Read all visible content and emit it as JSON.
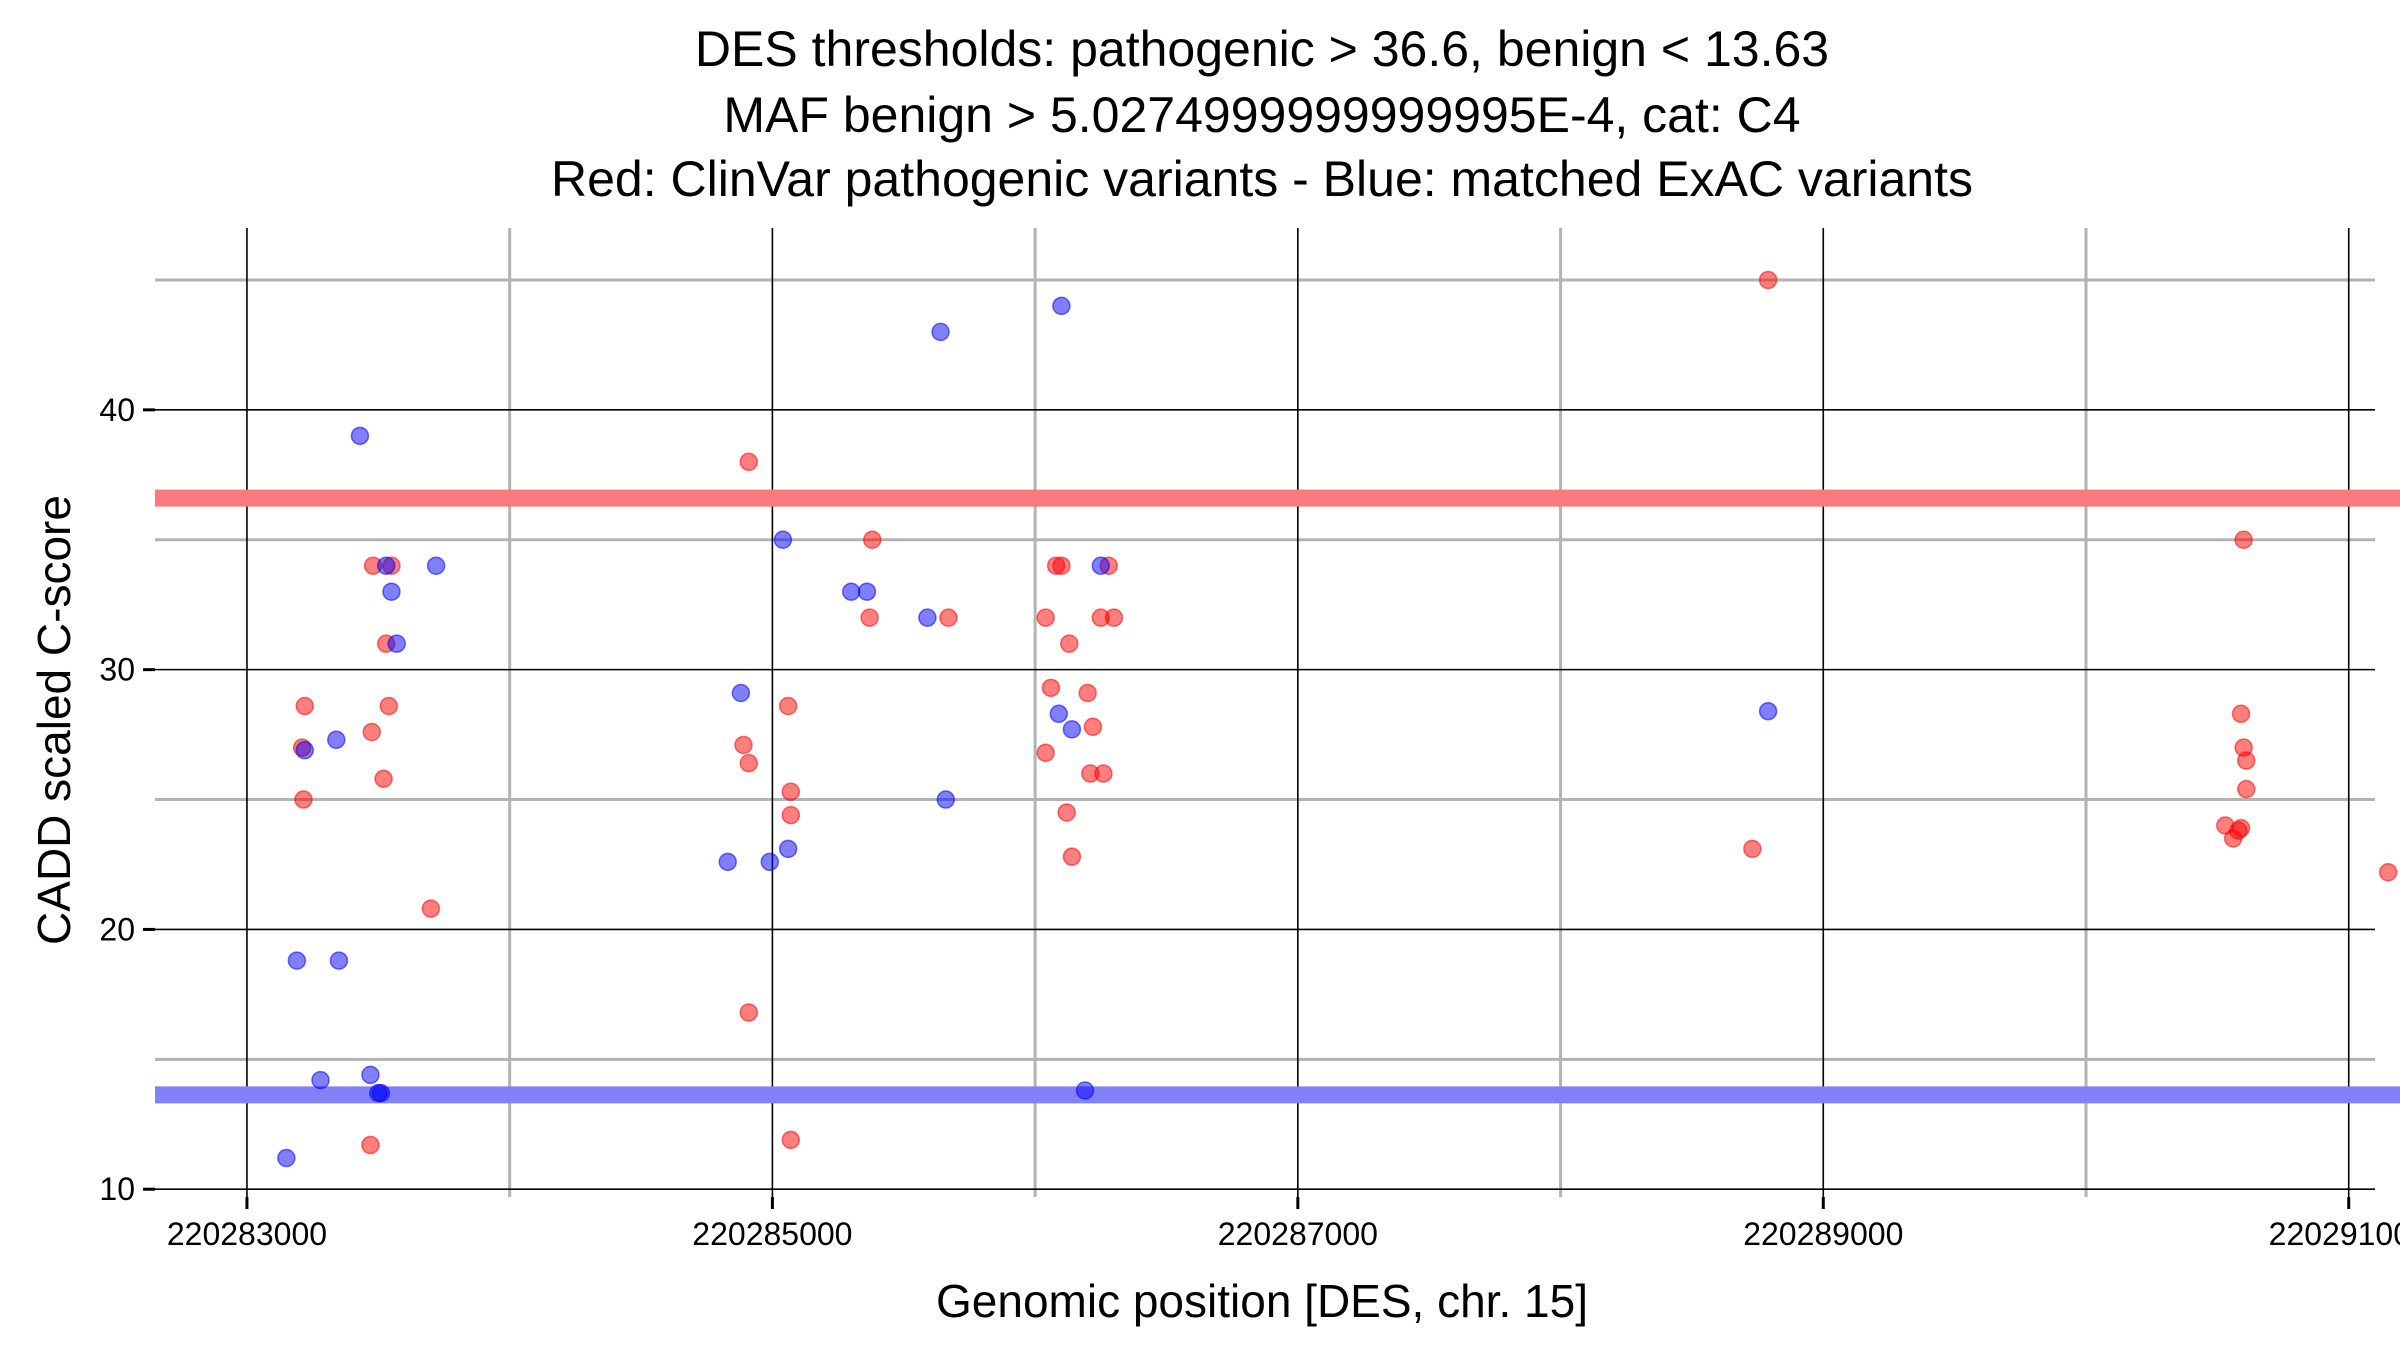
{
  "chart_data": {
    "type": "scatter",
    "title_lines": [
      "DES thresholds: pathogenic > 36.6, benign < 13.63",
      "MAF benign > 5.0274999999999995E-4, cat: C4",
      "Red: ClinVar pathogenic variants - Blue: matched ExAC variants"
    ],
    "xlabel": "Genomic position [DES, chr. 15]",
    "ylabel": "CADD scaled C-score",
    "xlim": [
      220282650,
      220291100
    ],
    "ylim": [
      9.7,
      47
    ],
    "x_ticks": [
      220283000,
      220285000,
      220287000,
      220289000,
      220291000
    ],
    "x_tick_labels": [
      "220283000",
      "220285000",
      "220287000",
      "220289000",
      "220291000"
    ],
    "x_minor_gridlines": [
      220284000,
      220286000,
      220288000,
      220290000
    ],
    "y_ticks": [
      10,
      20,
      30,
      40
    ],
    "y_tick_labels": [
      "10",
      "20",
      "30",
      "40"
    ],
    "y_minor_gridlines": [
      15,
      25,
      35,
      45
    ],
    "thresholds": [
      {
        "name": "pathogenic",
        "value": 36.6,
        "color": "#f87a7f"
      },
      {
        "name": "benign",
        "value": 13.63,
        "color": "#8282f8"
      }
    ],
    "grid": true,
    "colors": {
      "pathogenic_points": "#ff0000",
      "benign_points": "#0000ff",
      "major_grid": "#000000",
      "minor_grid": "#b3b3b3"
    },
    "series": [
      {
        "name": "ClinVar pathogenic variants",
        "color": "#ff0000",
        "points": [
          {
            "x": 220283220,
            "y": 28.6
          },
          {
            "x": 220283210,
            "y": 27.0
          },
          {
            "x": 220283215,
            "y": 25.0
          },
          {
            "x": 220283480,
            "y": 34.0
          },
          {
            "x": 220283550,
            "y": 34.0
          },
          {
            "x": 220283530,
            "y": 31.0
          },
          {
            "x": 220283540,
            "y": 28.6
          },
          {
            "x": 220283475,
            "y": 27.6
          },
          {
            "x": 220283520,
            "y": 25.8
          },
          {
            "x": 220283700,
            "y": 20.8
          },
          {
            "x": 220283470,
            "y": 11.7
          },
          {
            "x": 220284910,
            "y": 38.0
          },
          {
            "x": 220284890,
            "y": 27.1
          },
          {
            "x": 220284910,
            "y": 26.4
          },
          {
            "x": 220285060,
            "y": 28.6
          },
          {
            "x": 220285070,
            "y": 25.3
          },
          {
            "x": 220285070,
            "y": 24.4
          },
          {
            "x": 220284910,
            "y": 16.8
          },
          {
            "x": 220285070,
            "y": 11.9
          },
          {
            "x": 220285380,
            "y": 35.0
          },
          {
            "x": 220285370,
            "y": 32.0
          },
          {
            "x": 220285670,
            "y": 32.0
          },
          {
            "x": 220286080,
            "y": 34.0
          },
          {
            "x": 220286100,
            "y": 34.0
          },
          {
            "x": 220286280,
            "y": 34.0
          },
          {
            "x": 220286040,
            "y": 32.0
          },
          {
            "x": 220286250,
            "y": 32.0
          },
          {
            "x": 220286300,
            "y": 32.0
          },
          {
            "x": 220286130,
            "y": 31.0
          },
          {
            "x": 220286060,
            "y": 29.3
          },
          {
            "x": 220286200,
            "y": 29.1
          },
          {
            "x": 220286220,
            "y": 27.8
          },
          {
            "x": 220286040,
            "y": 26.8
          },
          {
            "x": 220286210,
            "y": 26.0
          },
          {
            "x": 220286260,
            "y": 26.0
          },
          {
            "x": 220286120,
            "y": 24.5
          },
          {
            "x": 220286140,
            "y": 22.8
          },
          {
            "x": 220288790,
            "y": 45.0
          },
          {
            "x": 220288730,
            "y": 23.1
          },
          {
            "x": 220290600,
            "y": 35.0
          },
          {
            "x": 220290590,
            "y": 28.3
          },
          {
            "x": 220290600,
            "y": 27.0
          },
          {
            "x": 220290610,
            "y": 26.5
          },
          {
            "x": 220290610,
            "y": 25.4
          },
          {
            "x": 220290530,
            "y": 24.0
          },
          {
            "x": 220290590,
            "y": 23.9
          },
          {
            "x": 220290560,
            "y": 23.5
          },
          {
            "x": 220290580,
            "y": 23.8
          },
          {
            "x": 220291150,
            "y": 22.2
          }
        ]
      },
      {
        "name": "matched ExAC variants",
        "color": "#0000ff",
        "points": [
          {
            "x": 220283430,
            "y": 39.0
          },
          {
            "x": 220283530,
            "y": 34.0
          },
          {
            "x": 220283720,
            "y": 34.0
          },
          {
            "x": 220283550,
            "y": 33.0
          },
          {
            "x": 220283570,
            "y": 31.0
          },
          {
            "x": 220283340,
            "y": 27.3
          },
          {
            "x": 220283220,
            "y": 26.9
          },
          {
            "x": 220283190,
            "y": 18.8
          },
          {
            "x": 220283350,
            "y": 18.8
          },
          {
            "x": 220283280,
            "y": 14.2
          },
          {
            "x": 220283470,
            "y": 14.4
          },
          {
            "x": 220283500,
            "y": 13.7
          },
          {
            "x": 220283510,
            "y": 13.7
          },
          {
            "x": 220283150,
            "y": 11.2
          },
          {
            "x": 220284880,
            "y": 29.1
          },
          {
            "x": 220285040,
            "y": 35.0
          },
          {
            "x": 220285060,
            "y": 23.1
          },
          {
            "x": 220284830,
            "y": 22.6
          },
          {
            "x": 220284990,
            "y": 22.6
          },
          {
            "x": 220285640,
            "y": 43.0
          },
          {
            "x": 220285300,
            "y": 33.0
          },
          {
            "x": 220285360,
            "y": 33.0
          },
          {
            "x": 220285590,
            "y": 32.0
          },
          {
            "x": 220285660,
            "y": 25.0
          },
          {
            "x": 220286100,
            "y": 44.0
          },
          {
            "x": 220286250,
            "y": 34.0
          },
          {
            "x": 220286090,
            "y": 28.3
          },
          {
            "x": 220286140,
            "y": 27.7
          },
          {
            "x": 220286190,
            "y": 13.8
          },
          {
            "x": 220288790,
            "y": 28.4
          }
        ]
      }
    ]
  }
}
